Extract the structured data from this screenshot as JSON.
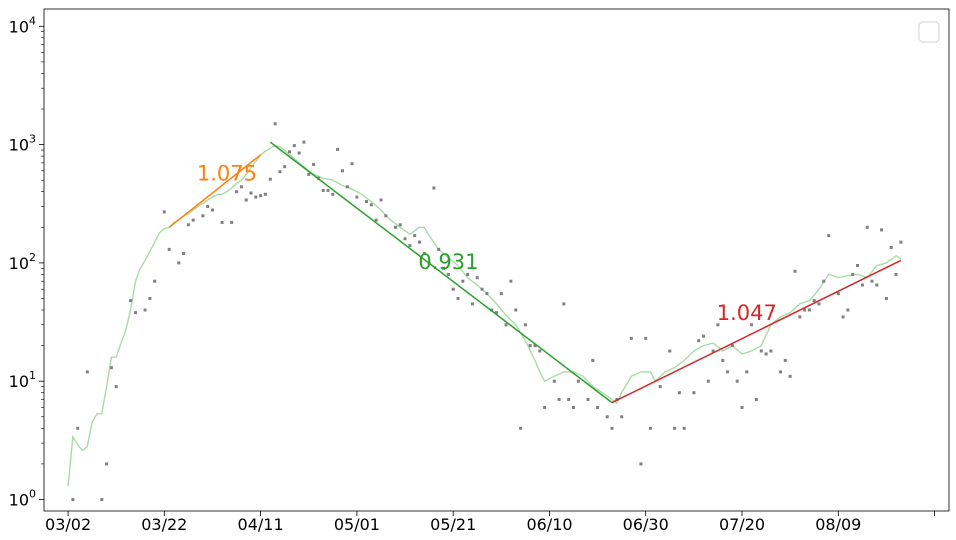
{
  "chart_data": {
    "type": "scatter",
    "y_scale": "log",
    "ylim": [
      0.8,
      14000
    ],
    "xlim": [
      "2020-02-26",
      "2020-09-01"
    ],
    "grid": false,
    "legend": "top-right",
    "x_tick_labels": [
      "03/02",
      "03/22",
      "04/11",
      "05/01",
      "05/21",
      "06/10",
      "06/30",
      "07/20",
      "08/09"
    ],
    "y_ticks": [
      {
        "value": 1,
        "mantissa": "10",
        "exponent": "0"
      },
      {
        "value": 10,
        "mantissa": "10",
        "exponent": "1"
      },
      {
        "value": 100,
        "mantissa": "10",
        "exponent": "2"
      },
      {
        "value": 1000,
        "mantissa": "10",
        "exponent": "3"
      },
      {
        "value": 10000,
        "mantissa": "10",
        "exponent": "4"
      }
    ],
    "scatter": {
      "color": "#808080",
      "points": [
        [
          "2020-03-03",
          1
        ],
        [
          "2020-03-04",
          4
        ],
        [
          "2020-03-06",
          12
        ],
        [
          "2020-03-09",
          1
        ],
        [
          "2020-03-10",
          2
        ],
        [
          "2020-03-11",
          13
        ],
        [
          "2020-03-12",
          9
        ],
        [
          "2020-03-15",
          48
        ],
        [
          "2020-03-16",
          38
        ],
        [
          "2020-03-18",
          40
        ],
        [
          "2020-03-19",
          50
        ],
        [
          "2020-03-20",
          70
        ],
        [
          "2020-03-22",
          270
        ],
        [
          "2020-03-23",
          130
        ],
        [
          "2020-03-25",
          100
        ],
        [
          "2020-03-26",
          120
        ],
        [
          "2020-03-27",
          210
        ],
        [
          "2020-03-28",
          230
        ],
        [
          "2020-03-30",
          250
        ],
        [
          "2020-03-31",
          300
        ],
        [
          "2020-04-01",
          280
        ],
        [
          "2020-04-03",
          220
        ],
        [
          "2020-04-05",
          220
        ],
        [
          "2020-04-06",
          400
        ],
        [
          "2020-04-07",
          440
        ],
        [
          "2020-04-08",
          340
        ],
        [
          "2020-04-09",
          390
        ],
        [
          "2020-04-10",
          360
        ],
        [
          "2020-04-11",
          370
        ],
        [
          "2020-04-12",
          380
        ],
        [
          "2020-04-13",
          510
        ],
        [
          "2020-04-14",
          1500
        ],
        [
          "2020-04-15",
          590
        ],
        [
          "2020-04-16",
          650
        ],
        [
          "2020-04-17",
          870
        ],
        [
          "2020-04-18",
          980
        ],
        [
          "2020-04-19",
          850
        ],
        [
          "2020-04-20",
          1050
        ],
        [
          "2020-04-21",
          560
        ],
        [
          "2020-04-22",
          680
        ],
        [
          "2020-04-23",
          520
        ],
        [
          "2020-04-24",
          410
        ],
        [
          "2020-04-25",
          410
        ],
        [
          "2020-04-26",
          380
        ],
        [
          "2020-04-27",
          910
        ],
        [
          "2020-04-28",
          600
        ],
        [
          "2020-04-29",
          440
        ],
        [
          "2020-04-30",
          690
        ],
        [
          "2020-05-01",
          360
        ],
        [
          "2020-05-03",
          330
        ],
        [
          "2020-05-04",
          310
        ],
        [
          "2020-05-05",
          230
        ],
        [
          "2020-05-06",
          340
        ],
        [
          "2020-05-07",
          250
        ],
        [
          "2020-05-09",
          200
        ],
        [
          "2020-05-10",
          210
        ],
        [
          "2020-05-11",
          160
        ],
        [
          "2020-05-12",
          140
        ],
        [
          "2020-05-13",
          170
        ],
        [
          "2020-05-14",
          150
        ],
        [
          "2020-05-15",
          120
        ],
        [
          "2020-05-16",
          100
        ],
        [
          "2020-05-17",
          430
        ],
        [
          "2020-05-18",
          130
        ],
        [
          "2020-05-19",
          90
        ],
        [
          "2020-05-20",
          80
        ],
        [
          "2020-05-21",
          60
        ],
        [
          "2020-05-22",
          50
        ],
        [
          "2020-05-23",
          70
        ],
        [
          "2020-05-24",
          80
        ],
        [
          "2020-05-25",
          45
        ],
        [
          "2020-05-26",
          75
        ],
        [
          "2020-05-27",
          60
        ],
        [
          "2020-05-28",
          55
        ],
        [
          "2020-05-29",
          40
        ],
        [
          "2020-05-30",
          38
        ],
        [
          "2020-05-31",
          55
        ],
        [
          "2020-06-01",
          30
        ],
        [
          "2020-06-02",
          70
        ],
        [
          "2020-06-03",
          40
        ],
        [
          "2020-06-04",
          4
        ],
        [
          "2020-06-05",
          30
        ],
        [
          "2020-06-06",
          20
        ],
        [
          "2020-06-07",
          20
        ],
        [
          "2020-06-08",
          18
        ],
        [
          "2020-06-09",
          6
        ],
        [
          "2020-06-11",
          10
        ],
        [
          "2020-06-12",
          7
        ],
        [
          "2020-06-13",
          45
        ],
        [
          "2020-06-14",
          7
        ],
        [
          "2020-06-15",
          6
        ],
        [
          "2020-06-16",
          10
        ],
        [
          "2020-06-18",
          7
        ],
        [
          "2020-06-19",
          15
        ],
        [
          "2020-06-20",
          6
        ],
        [
          "2020-06-22",
          5
        ],
        [
          "2020-06-23",
          4
        ],
        [
          "2020-06-24",
          7
        ],
        [
          "2020-06-25",
          5
        ],
        [
          "2020-06-27",
          23
        ],
        [
          "2020-06-29",
          2
        ],
        [
          "2020-06-30",
          23
        ],
        [
          "2020-07-01",
          4
        ],
        [
          "2020-07-03",
          9
        ],
        [
          "2020-07-05",
          18
        ],
        [
          "2020-07-06",
          4
        ],
        [
          "2020-07-07",
          8
        ],
        [
          "2020-07-08",
          4
        ],
        [
          "2020-07-10",
          8
        ],
        [
          "2020-07-11",
          22
        ],
        [
          "2020-07-12",
          24
        ],
        [
          "2020-07-13",
          10
        ],
        [
          "2020-07-14",
          18
        ],
        [
          "2020-07-15",
          30
        ],
        [
          "2020-07-16",
          15
        ],
        [
          "2020-07-17",
          12
        ],
        [
          "2020-07-18",
          20
        ],
        [
          "2020-07-19",
          10
        ],
        [
          "2020-07-20",
          6
        ],
        [
          "2020-07-21",
          12
        ],
        [
          "2020-07-22",
          30
        ],
        [
          "2020-07-23",
          7
        ],
        [
          "2020-07-24",
          18
        ],
        [
          "2020-07-25",
          17
        ],
        [
          "2020-07-26",
          18
        ],
        [
          "2020-07-28",
          12
        ],
        [
          "2020-07-29",
          15
        ],
        [
          "2020-07-30",
          11
        ],
        [
          "2020-07-31",
          85
        ],
        [
          "2020-08-01",
          35
        ],
        [
          "2020-08-02",
          40
        ],
        [
          "2020-08-03",
          40
        ],
        [
          "2020-08-04",
          48
        ],
        [
          "2020-08-05",
          45
        ],
        [
          "2020-08-06",
          70
        ],
        [
          "2020-08-07",
          170
        ],
        [
          "2020-08-09",
          55
        ],
        [
          "2020-08-10",
          35
        ],
        [
          "2020-08-11",
          40
        ],
        [
          "2020-08-12",
          80
        ],
        [
          "2020-08-13",
          95
        ],
        [
          "2020-08-14",
          65
        ],
        [
          "2020-08-15",
          200
        ],
        [
          "2020-08-16",
          70
        ],
        [
          "2020-08-17",
          65
        ],
        [
          "2020-08-18",
          190
        ],
        [
          "2020-08-19",
          50
        ],
        [
          "2020-08-20",
          135
        ],
        [
          "2020-08-21",
          80
        ],
        [
          "2020-08-22",
          150
        ]
      ]
    },
    "smoothed": {
      "color": "#a8dba8",
      "points": [
        [
          "2020-03-02",
          1.3
        ],
        [
          "2020-03-03",
          3.4
        ],
        [
          "2020-03-04",
          2.9
        ],
        [
          "2020-03-05",
          2.6
        ],
        [
          "2020-03-06",
          2.8
        ],
        [
          "2020-03-07",
          4.5
        ],
        [
          "2020-03-08",
          5.3
        ],
        [
          "2020-03-09",
          5.3
        ],
        [
          "2020-03-10",
          9.0
        ],
        [
          "2020-03-11",
          16
        ],
        [
          "2020-03-12",
          16
        ],
        [
          "2020-03-13",
          21
        ],
        [
          "2020-03-14",
          27
        ],
        [
          "2020-03-15",
          40
        ],
        [
          "2020-03-16",
          70
        ],
        [
          "2020-03-17",
          90
        ],
        [
          "2020-03-18",
          105
        ],
        [
          "2020-03-19",
          125
        ],
        [
          "2020-03-20",
          150
        ],
        [
          "2020-03-21",
          180
        ],
        [
          "2020-03-22",
          195
        ],
        [
          "2020-03-23",
          200
        ],
        [
          "2020-03-24",
          220
        ],
        [
          "2020-03-25",
          230
        ],
        [
          "2020-03-26",
          250
        ],
        [
          "2020-03-27",
          260
        ],
        [
          "2020-03-28",
          280
        ],
        [
          "2020-03-29",
          300
        ],
        [
          "2020-03-30",
          320
        ],
        [
          "2020-03-31",
          340
        ],
        [
          "2020-04-01",
          360
        ],
        [
          "2020-04-02",
          380
        ],
        [
          "2020-04-03",
          380
        ],
        [
          "2020-04-04",
          400
        ],
        [
          "2020-04-05",
          430
        ],
        [
          "2020-04-06",
          470
        ],
        [
          "2020-04-07",
          500
        ],
        [
          "2020-04-08",
          560
        ],
        [
          "2020-04-09",
          640
        ],
        [
          "2020-04-10",
          720
        ],
        [
          "2020-04-11",
          820
        ],
        [
          "2020-04-12",
          880
        ],
        [
          "2020-04-13",
          930
        ],
        [
          "2020-04-14",
          980
        ],
        [
          "2020-04-15",
          960
        ],
        [
          "2020-04-16",
          900
        ],
        [
          "2020-04-17",
          820
        ],
        [
          "2020-04-18",
          760
        ],
        [
          "2020-04-19",
          700
        ],
        [
          "2020-04-20",
          650
        ],
        [
          "2020-04-21",
          600
        ],
        [
          "2020-04-22",
          560
        ],
        [
          "2020-04-24",
          520
        ],
        [
          "2020-04-26",
          500
        ],
        [
          "2020-04-28",
          450
        ],
        [
          "2020-04-30",
          420
        ],
        [
          "2020-05-02",
          380
        ],
        [
          "2020-05-04",
          330
        ],
        [
          "2020-05-06",
          280
        ],
        [
          "2020-05-08",
          230
        ],
        [
          "2020-05-10",
          200
        ],
        [
          "2020-05-12",
          175
        ],
        [
          "2020-05-14",
          200
        ],
        [
          "2020-05-15",
          200
        ],
        [
          "2020-05-16",
          170
        ],
        [
          "2020-05-18",
          130
        ],
        [
          "2020-05-20",
          110
        ],
        [
          "2020-05-22",
          95
        ],
        [
          "2020-05-24",
          75
        ],
        [
          "2020-05-26",
          65
        ],
        [
          "2020-05-28",
          55
        ],
        [
          "2020-05-30",
          45
        ],
        [
          "2020-06-01",
          36
        ],
        [
          "2020-06-03",
          30
        ],
        [
          "2020-06-05",
          22
        ],
        [
          "2020-06-07",
          15
        ],
        [
          "2020-06-08",
          12
        ],
        [
          "2020-06-09",
          10
        ],
        [
          "2020-06-11",
          11
        ],
        [
          "2020-06-13",
          12
        ],
        [
          "2020-06-15",
          12
        ],
        [
          "2020-06-17",
          11
        ],
        [
          "2020-06-19",
          9
        ],
        [
          "2020-06-21",
          8
        ],
        [
          "2020-06-23",
          7
        ],
        [
          "2020-06-24",
          6.5
        ],
        [
          "2020-06-25",
          8
        ],
        [
          "2020-06-27",
          11
        ],
        [
          "2020-06-29",
          12
        ],
        [
          "2020-07-01",
          12
        ],
        [
          "2020-07-02",
          10
        ],
        [
          "2020-07-04",
          12
        ],
        [
          "2020-07-06",
          13
        ],
        [
          "2020-07-08",
          15
        ],
        [
          "2020-07-10",
          18
        ],
        [
          "2020-07-12",
          20
        ],
        [
          "2020-07-14",
          21
        ],
        [
          "2020-07-16",
          18
        ],
        [
          "2020-07-18",
          20
        ],
        [
          "2020-07-20",
          17
        ],
        [
          "2020-07-22",
          18
        ],
        [
          "2020-07-24",
          20
        ],
        [
          "2020-07-26",
          30
        ],
        [
          "2020-07-28",
          35
        ],
        [
          "2020-07-30",
          38
        ],
        [
          "2020-08-01",
          45
        ],
        [
          "2020-08-03",
          48
        ],
        [
          "2020-08-05",
          60
        ],
        [
          "2020-08-07",
          80
        ],
        [
          "2020-08-09",
          75
        ],
        [
          "2020-08-11",
          78
        ],
        [
          "2020-08-13",
          80
        ],
        [
          "2020-08-15",
          75
        ],
        [
          "2020-08-17",
          95
        ],
        [
          "2020-08-19",
          100
        ],
        [
          "2020-08-21",
          115
        ],
        [
          "2020-08-22",
          108
        ]
      ]
    },
    "fits": [
      {
        "label": "1.075",
        "color": "#ff7f0e",
        "start": [
          "2020-03-23",
          200
        ],
        "end": [
          "2020-04-11",
          820
        ],
        "label_at": [
          "2020-04-04",
          560
        ]
      },
      {
        "label": "0.931",
        "color": "#2ca02c",
        "start": [
          "2020-04-13",
          1050
        ],
        "end": [
          "2020-06-23",
          6.6
        ],
        "label_at": [
          "2020-05-20",
          100
        ]
      },
      {
        "label": "1.047",
        "color": "#d62728",
        "start": [
          "2020-06-23",
          6.6
        ],
        "end": [
          "2020-08-22",
          105
        ],
        "label_at": [
          "2020-07-21",
          37
        ]
      }
    ]
  }
}
